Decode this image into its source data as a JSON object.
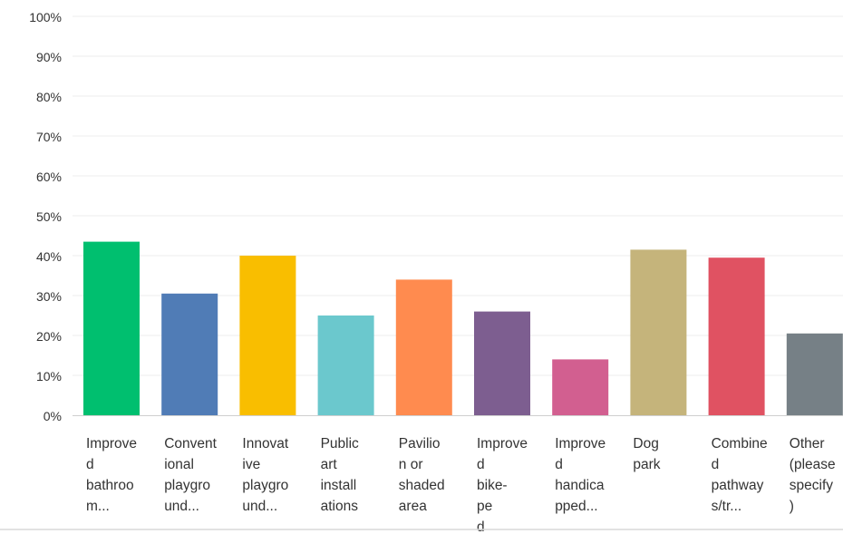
{
  "chart_data": {
    "type": "bar",
    "title": "",
    "xlabel": "",
    "ylabel": "",
    "ylim": [
      0,
      100
    ],
    "y_ticks": [
      "0%",
      "10%",
      "20%",
      "30%",
      "40%",
      "50%",
      "60%",
      "70%",
      "80%",
      "90%",
      "100%"
    ],
    "grid": true,
    "categories": [
      {
        "label": "Improved bathroom...",
        "lines": [
          "Improve",
          "d",
          "bathroo",
          "m..."
        ]
      },
      {
        "label": "Conventional playground...",
        "lines": [
          "Convent",
          "ional",
          "playgro",
          "und..."
        ]
      },
      {
        "label": "Innovative playground...",
        "lines": [
          "Innovat",
          "ive",
          "playgro",
          "und..."
        ]
      },
      {
        "label": "Public art installations",
        "lines": [
          "Public",
          "art",
          "install",
          "ations"
        ]
      },
      {
        "label": "Pavilion or shaded area",
        "lines": [
          "Pavilio",
          "n or",
          "shaded",
          "area"
        ]
      },
      {
        "label": "Improved bike-ped...",
        "lines": [
          "Improve",
          "d",
          "bike-",
          "pe",
          "d"
        ]
      },
      {
        "label": "Improved handicapped...",
        "lines": [
          "Improve",
          "d",
          "handica",
          "pped..."
        ]
      },
      {
        "label": "Dog park",
        "lines": [
          "Dog",
          "park"
        ]
      },
      {
        "label": "Combined pathways/tr...",
        "lines": [
          "Combine",
          "d",
          "pathway",
          "s/tr..."
        ]
      },
      {
        "label": "Other (please specify)",
        "lines": [
          "Other",
          "(please",
          "specify",
          ")"
        ]
      }
    ],
    "values": [
      43.5,
      30.5,
      40,
      25,
      34,
      26,
      14,
      41.5,
      39.5,
      20.5
    ],
    "colors": [
      "#00bf6f",
      "#507cb6",
      "#f9be00",
      "#6bc8cd",
      "#ff8b4f",
      "#7d5e90",
      "#d25f90",
      "#c5b47b",
      "#e05262",
      "#768086"
    ]
  }
}
